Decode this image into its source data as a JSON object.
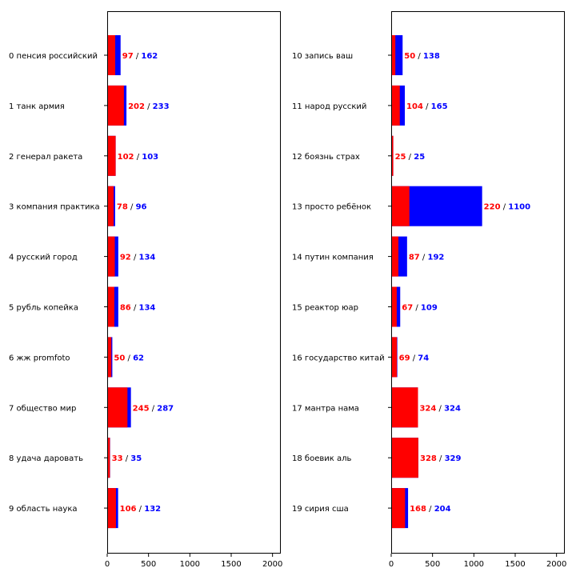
{
  "colors": {
    "red": "#ff0000",
    "blue": "#0000ff",
    "axis": "#000000",
    "background": "#ffffff"
  },
  "chart_data": [
    {
      "type": "bar",
      "orientation": "horizontal",
      "categories": [
        "0 пенсия российский",
        "1 танк армия",
        "2 генерал ракета",
        "3 компания практика",
        "4 русский город",
        "5 рубль копейка",
        "6 жж promfoto",
        "7 общество мир",
        "8 удача даровать",
        "9 область наука"
      ],
      "series": [
        {
          "color": "#0000ff",
          "values": [
            162,
            233,
            103,
            96,
            134,
            134,
            62,
            287,
            35,
            132
          ]
        },
        {
          "color": "#ff0000",
          "values": [
            97,
            202,
            102,
            78,
            92,
            86,
            50,
            245,
            33,
            106
          ]
        }
      ],
      "separator": "/",
      "xlim": [
        0,
        2100
      ],
      "xticks": [
        0,
        500,
        1000,
        1500,
        2000
      ],
      "grid": false,
      "title": "",
      "xlabel": "",
      "ylabel": ""
    },
    {
      "type": "bar",
      "orientation": "horizontal",
      "categories": [
        "10 запись ваш",
        "11 народ русский",
        "12 боязнь страх",
        "13 просто ребёнок",
        "14 путин компания",
        "15 реактор юар",
        "16 государство китай",
        "17 мантра нама",
        "18 боевик аль",
        "19 сирия сша"
      ],
      "series": [
        {
          "color": "#0000ff",
          "values": [
            138,
            165,
            25,
            1100,
            192,
            109,
            74,
            324,
            329,
            204
          ]
        },
        {
          "color": "#ff0000",
          "values": [
            50,
            104,
            25,
            220,
            87,
            67,
            69,
            324,
            328,
            168
          ]
        }
      ],
      "separator": "/",
      "xlim": [
        0,
        2100
      ],
      "xticks": [
        0,
        500,
        1000,
        1500,
        2000
      ],
      "grid": false,
      "title": "",
      "xlabel": "",
      "ylabel": ""
    }
  ]
}
